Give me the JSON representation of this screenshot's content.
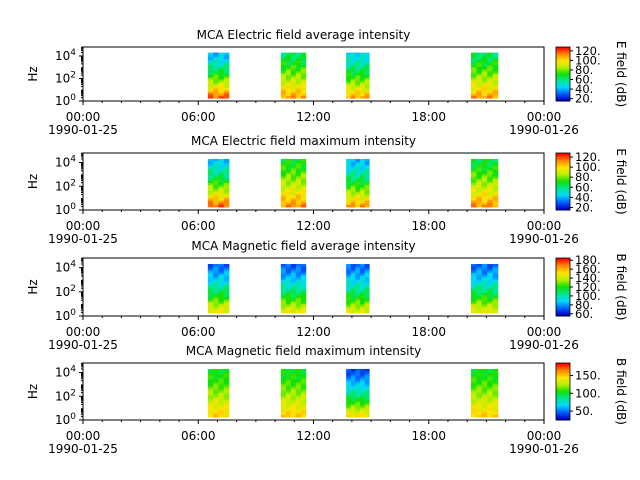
{
  "chart_data": [
    {
      "type": "heatmap",
      "title": "MCA  Electric field average intensity",
      "ylabel": "Hz",
      "colorbar_label": "E field (dB)",
      "colorbar_ticks": [
        "20.",
        "40.",
        "60.",
        "80.",
        "100.",
        "120."
      ],
      "clim": [
        15,
        128
      ],
      "yticks": [
        "10^0",
        "10^2",
        "10^4"
      ],
      "ylim_log10": [
        0,
        4.8
      ],
      "xticks": [
        "00:00",
        "06:00",
        "12:00",
        "18:00",
        "00:00"
      ],
      "xticks_date": [
        "1990-01-25",
        "",
        "",
        "",
        "1990-01-26"
      ],
      "xlim_hours": [
        0,
        24
      ],
      "segments": [
        {
          "start_hour": 6.5,
          "end_hour": 7.6,
          "low_db": 118,
          "high_db": 40
        },
        {
          "start_hour": 10.3,
          "end_hour": 11.6,
          "low_db": 110,
          "high_db": 62
        },
        {
          "start_hour": 13.7,
          "end_hour": 14.9,
          "low_db": 108,
          "high_db": 45
        },
        {
          "start_hour": 20.2,
          "end_hour": 21.6,
          "low_db": 110,
          "high_db": 62
        }
      ]
    },
    {
      "type": "heatmap",
      "title": "MCA  Electric field maximum intensity",
      "ylabel": "Hz",
      "colorbar_label": "E field (dB)",
      "colorbar_ticks": [
        "20.",
        "40.",
        "60.",
        "80.",
        "100.",
        "120."
      ],
      "clim": [
        15,
        128
      ],
      "yticks": [
        "10^0",
        "10^2",
        "10^4"
      ],
      "ylim_log10": [
        0,
        4.8
      ],
      "xticks": [
        "00:00",
        "06:00",
        "12:00",
        "18:00",
        "00:00"
      ],
      "xticks_date": [
        "1990-01-25",
        "",
        "",
        "",
        "1990-01-26"
      ],
      "xlim_hours": [
        0,
        24
      ],
      "segments": [
        {
          "start_hour": 6.5,
          "end_hour": 7.6,
          "low_db": 118,
          "high_db": 42
        },
        {
          "start_hour": 10.3,
          "end_hour": 11.6,
          "low_db": 112,
          "high_db": 68
        },
        {
          "start_hour": 13.7,
          "end_hour": 14.9,
          "low_db": 110,
          "high_db": 40
        },
        {
          "start_hour": 20.2,
          "end_hour": 21.6,
          "low_db": 112,
          "high_db": 65
        }
      ]
    },
    {
      "type": "heatmap",
      "title": "MCA  Magnetic field average intensity",
      "ylabel": "Hz",
      "colorbar_label": "B field (dB)",
      "colorbar_ticks": [
        "60.",
        "80.",
        "100.",
        "120.",
        "140.",
        "160.",
        "180."
      ],
      "clim": [
        55,
        185
      ],
      "yticks": [
        "10^0",
        "10^2",
        "10^4"
      ],
      "ylim_log10": [
        0,
        4.8
      ],
      "xticks": [
        "00:00",
        "06:00",
        "12:00",
        "18:00",
        "00:00"
      ],
      "xticks_date": [
        "1990-01-25",
        "",
        "",
        "",
        "1990-01-26"
      ],
      "xlim_hours": [
        0,
        24
      ],
      "segments": [
        {
          "start_hour": 6.5,
          "end_hour": 7.6,
          "low_db": 150,
          "high_db": 72
        },
        {
          "start_hour": 10.3,
          "end_hour": 11.6,
          "low_db": 148,
          "high_db": 70
        },
        {
          "start_hour": 13.7,
          "end_hour": 14.9,
          "low_db": 145,
          "high_db": 72
        },
        {
          "start_hour": 20.2,
          "end_hour": 21.6,
          "low_db": 148,
          "high_db": 72
        }
      ]
    },
    {
      "type": "heatmap",
      "title": "MCA  Magnetic field maximum intensity",
      "ylabel": "Hz",
      "colorbar_label": "B field (dB)",
      "colorbar_ticks": [
        "50.",
        "100.",
        "150."
      ],
      "clim": [
        25,
        185
      ],
      "yticks": [
        "10^0",
        "10^2",
        "10^4"
      ],
      "ylim_log10": [
        0,
        4.8
      ],
      "xticks": [
        "00:00",
        "06:00",
        "12:00",
        "18:00",
        "00:00"
      ],
      "xticks_date": [
        "1990-01-25",
        "",
        "",
        "",
        "1990-01-26"
      ],
      "xlim_hours": [
        0,
        24
      ],
      "segments": [
        {
          "start_hour": 6.5,
          "end_hour": 7.6,
          "low_db": 150,
          "high_db": 100
        },
        {
          "start_hour": 10.3,
          "end_hour": 11.6,
          "low_db": 150,
          "high_db": 100
        },
        {
          "start_hour": 13.7,
          "end_hour": 14.9,
          "low_db": 145,
          "high_db": 40
        },
        {
          "start_hour": 20.2,
          "end_hour": 21.6,
          "low_db": 150,
          "high_db": 100
        }
      ]
    }
  ],
  "colormap": [
    "#0000c8",
    "#0060ff",
    "#00d8ff",
    "#00e890",
    "#10e000",
    "#b8f000",
    "#ffe400",
    "#ff8800",
    "#ff0000"
  ]
}
